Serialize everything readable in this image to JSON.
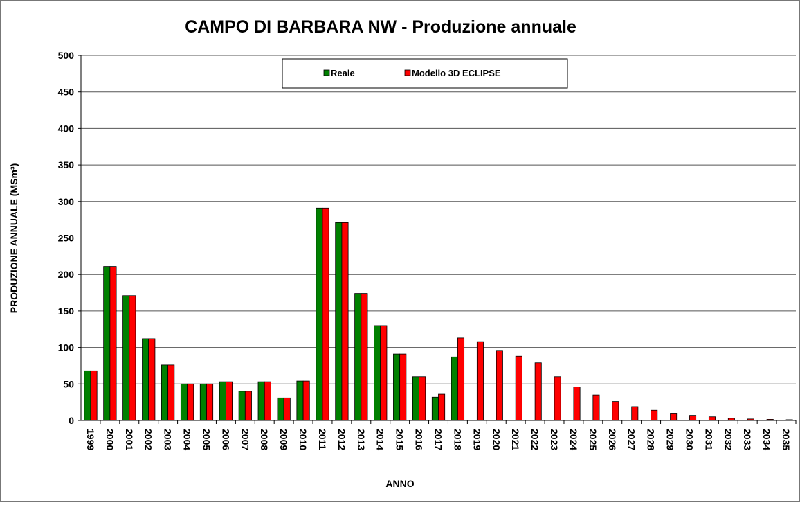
{
  "chart_data": {
    "type": "bar",
    "title": "CAMPO DI BARBARA NW - Produzione annuale",
    "y_label": "PRODUZIONE  ANNUALE (MSm³)",
    "x_label": "ANNO",
    "categories": [
      "1999",
      "2000",
      "2001",
      "2002",
      "2003",
      "2004",
      "2005",
      "2006",
      "2007",
      "2008",
      "2009",
      "2010",
      "2011",
      "2012",
      "2013",
      "2014",
      "2015",
      "2016",
      "2017",
      "2018",
      "2019",
      "2020",
      "2021",
      "2022",
      "2023",
      "2024",
      "2025",
      "2026",
      "2027",
      "2028",
      "2029",
      "2030",
      "2031",
      "2032",
      "2033",
      "2034",
      "2035"
    ],
    "series": [
      {
        "name": "Reale",
        "color": "#008000",
        "values": [
          68,
          211,
          171,
          112,
          76,
          50,
          50,
          53,
          40,
          53,
          31,
          54,
          291,
          271,
          174,
          130,
          91,
          60,
          32,
          87,
          null,
          null,
          null,
          null,
          null,
          null,
          null,
          null,
          null,
          null,
          null,
          null,
          null,
          null,
          null,
          null,
          null
        ]
      },
      {
        "name": "Modello 3D ECLIPSE",
        "color": "#ff0000",
        "values": [
          68,
          211,
          171,
          112,
          76,
          50,
          50,
          53,
          40,
          53,
          31,
          54,
          291,
          271,
          174,
          130,
          91,
          60,
          36,
          113,
          108,
          96,
          88,
          79,
          60,
          46,
          35,
          26,
          19,
          14,
          10,
          7,
          5,
          3,
          2,
          1.5,
          1
        ]
      }
    ],
    "ylim": [
      0,
      500
    ],
    "yticks": [
      0,
      50,
      100,
      150,
      200,
      250,
      300,
      350,
      400,
      450,
      500
    ],
    "grid": true,
    "legend": "top"
  }
}
